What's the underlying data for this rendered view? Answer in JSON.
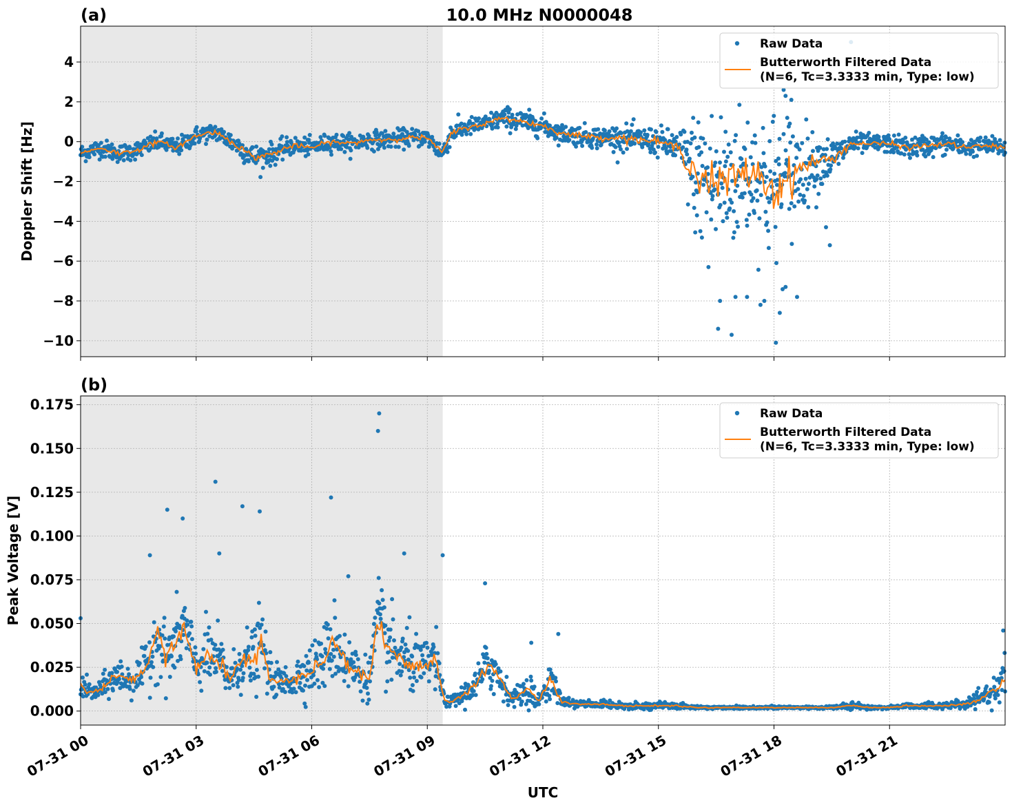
{
  "figure": {
    "title": "10.0 MHz N0000048",
    "xlabel": "UTC",
    "x_tick_labels": [
      "07-31 00",
      "07-31 03",
      "07-31 06",
      "07-31 09",
      "07-31 12",
      "07-31 15",
      "07-31 18",
      "07-31 21"
    ],
    "colors": {
      "raw": "#1f77b4",
      "filtered": "#ff7f0e",
      "night_shade": "#e8e8e8",
      "grid": "#b0b0b0"
    }
  },
  "chart_data": [
    {
      "type": "scatter",
      "panel_label": "(a)",
      "ylabel": "Doppler Shift [Hz]",
      "xlim_hours": [
        0,
        24
      ],
      "ylim": [
        -10.8,
        5.8
      ],
      "y_ticks": [
        4,
        2,
        0,
        -2,
        -4,
        -6,
        -8,
        -10
      ],
      "y_tick_labels": [
        "4",
        "2",
        "0",
        "−2",
        "−4",
        "−6",
        "−8",
        "−10"
      ],
      "grid": true,
      "legend_position": "top-right",
      "shaded_x_range_hours": [
        0,
        9.4
      ],
      "series": [
        {
          "name": "Raw Data",
          "style": "markers",
          "x": [
            0.0,
            0.5,
            1.0,
            1.5,
            2.0,
            2.5,
            3.0,
            3.5,
            4.0,
            4.5,
            5.0,
            5.5,
            6.0,
            6.5,
            7.0,
            7.5,
            8.0,
            8.5,
            9.0,
            9.4,
            9.6,
            10.0,
            10.5,
            11.0,
            11.5,
            12.0,
            12.5,
            13.0,
            13.5,
            14.0,
            14.5,
            15.0,
            15.5,
            16.0,
            16.5,
            17.0,
            17.5,
            18.0,
            18.5,
            19.0,
            19.5,
            20.0,
            20.5,
            21.0,
            21.5,
            22.0,
            22.5,
            23.0,
            23.5,
            24.0
          ],
          "y": [
            -0.6,
            -0.3,
            -0.6,
            -0.4,
            0.0,
            -0.3,
            0.3,
            0.5,
            -0.1,
            -0.8,
            -0.6,
            -0.2,
            -0.3,
            0.0,
            -0.1,
            0.1,
            0.1,
            0.2,
            0.2,
            -0.6,
            0.4,
            0.7,
            0.9,
            1.2,
            1.0,
            0.8,
            0.4,
            0.3,
            0.2,
            0.2,
            0.1,
            0.0,
            -0.3,
            -1.6,
            -2.2,
            -1.8,
            -1.5,
            -2.5,
            -1.6,
            -1.0,
            -0.9,
            -0.1,
            -0.1,
            -0.1,
            -0.3,
            -0.2,
            -0.1,
            -0.3,
            -0.2,
            -0.3
          ],
          "spread": [
            0.5,
            0.5,
            0.5,
            0.5,
            0.5,
            0.5,
            0.5,
            0.5,
            0.6,
            0.7,
            0.6,
            0.5,
            0.5,
            0.5,
            0.5,
            0.5,
            0.5,
            0.5,
            0.5,
            0.6,
            0.6,
            0.5,
            0.5,
            0.6,
            0.6,
            0.6,
            0.5,
            0.6,
            0.6,
            0.7,
            0.7,
            0.8,
            0.9,
            3.5,
            4.5,
            3.8,
            3.5,
            4.5,
            3.5,
            1.5,
            1.2,
            0.6,
            0.5,
            0.5,
            0.6,
            0.6,
            0.6,
            0.5,
            0.5,
            0.5
          ]
        },
        {
          "name": "Butterworth Filtered Data\n(N=6, Tc=3.3333 min, Type: low)",
          "style": "line",
          "x": [
            0.0,
            0.5,
            1.0,
            1.5,
            2.0,
            2.5,
            3.0,
            3.5,
            4.0,
            4.5,
            5.0,
            5.5,
            6.0,
            6.5,
            7.0,
            7.5,
            8.0,
            8.5,
            9.0,
            9.4,
            9.6,
            10.0,
            10.5,
            11.0,
            11.5,
            12.0,
            12.5,
            13.0,
            13.5,
            14.0,
            14.5,
            15.0,
            15.5,
            16.0,
            16.5,
            17.0,
            17.5,
            18.0,
            18.5,
            19.0,
            19.5,
            20.0,
            20.5,
            21.0,
            21.5,
            22.0,
            22.5,
            23.0,
            23.5,
            24.0
          ],
          "y": [
            -0.6,
            -0.3,
            -0.6,
            -0.4,
            0.0,
            -0.3,
            0.3,
            0.5,
            -0.1,
            -0.8,
            -0.6,
            -0.2,
            -0.3,
            0.0,
            -0.1,
            0.1,
            0.1,
            0.2,
            0.2,
            -0.6,
            0.4,
            0.7,
            0.9,
            1.2,
            1.0,
            0.8,
            0.4,
            0.3,
            0.2,
            0.2,
            0.1,
            0.0,
            -0.3,
            -1.6,
            -2.2,
            -1.8,
            -1.5,
            -2.5,
            -1.6,
            -1.0,
            -0.9,
            -0.1,
            -0.1,
            -0.1,
            -0.3,
            -0.2,
            -0.1,
            -0.3,
            -0.2,
            -0.3
          ]
        }
      ],
      "outliers": {
        "x": [
          16.55,
          16.6,
          16.9,
          17.0,
          17.3,
          17.65,
          17.75,
          18.05,
          18.15,
          18.3,
          18.6,
          16.0,
          16.3,
          18.25,
          18.3,
          18.45,
          19.45,
          19.35,
          19.1,
          20.0
        ],
        "y": [
          -9.4,
          -8.0,
          -9.7,
          -7.8,
          -7.8,
          -8.2,
          -8.0,
          -10.1,
          -8.6,
          -7.3,
          -7.8,
          -3.7,
          -6.3,
          2.6,
          2.3,
          2.1,
          -5.2,
          -4.3,
          -3.3,
          5.0
        ]
      },
      "legend": [
        "Raw Data",
        "Butterworth Filtered Data\n(N=6, Tc=3.3333 min, Type: low)"
      ]
    },
    {
      "type": "scatter",
      "panel_label": "(b)",
      "ylabel": "Peak Voltage [V]",
      "xlim_hours": [
        0,
        24
      ],
      "ylim": [
        -0.008,
        0.18
      ],
      "y_ticks": [
        0.175,
        0.15,
        0.125,
        0.1,
        0.075,
        0.05,
        0.025,
        0.0
      ],
      "y_tick_labels": [
        "0.175",
        "0.150",
        "0.125",
        "0.100",
        "0.075",
        "0.050",
        "0.025",
        "0.000"
      ],
      "grid": true,
      "legend_position": "top-right",
      "shaded_x_range_hours": [
        0,
        9.4
      ],
      "series": [
        {
          "name": "Raw Data",
          "style": "markers",
          "x": [
            0.0,
            0.3,
            0.5,
            0.8,
            1.0,
            1.3,
            1.6,
            1.8,
            2.0,
            2.2,
            2.4,
            2.7,
            3.0,
            3.3,
            3.6,
            3.9,
            4.2,
            4.5,
            4.7,
            4.9,
            5.2,
            5.5,
            5.8,
            6.0,
            6.3,
            6.6,
            6.9,
            7.2,
            7.5,
            7.7,
            8.0,
            8.3,
            8.6,
            8.9,
            9.2,
            9.45,
            9.6,
            10.0,
            10.3,
            10.6,
            10.9,
            11.2,
            11.6,
            11.9,
            12.2,
            12.5,
            13.0,
            13.5,
            14.0,
            14.5,
            15.0,
            15.5,
            16.0,
            16.5,
            17.0,
            17.5,
            18.0,
            18.5,
            19.0,
            19.5,
            20.0,
            20.5,
            21.0,
            21.5,
            22.0,
            22.5,
            23.0,
            23.3,
            23.6,
            24.0
          ],
          "y": [
            0.015,
            0.01,
            0.012,
            0.018,
            0.02,
            0.017,
            0.022,
            0.03,
            0.045,
            0.03,
            0.036,
            0.048,
            0.025,
            0.032,
            0.028,
            0.018,
            0.03,
            0.028,
            0.04,
            0.02,
            0.016,
            0.018,
            0.022,
            0.025,
            0.03,
            0.04,
            0.028,
            0.022,
            0.018,
            0.05,
            0.035,
            0.03,
            0.028,
            0.025,
            0.03,
            0.006,
            0.005,
            0.01,
            0.016,
            0.028,
            0.018,
            0.007,
            0.012,
            0.006,
            0.018,
            0.005,
            0.004,
            0.004,
            0.003,
            0.003,
            0.003,
            0.003,
            0.002,
            0.002,
            0.002,
            0.002,
            0.002,
            0.002,
            0.002,
            0.002,
            0.003,
            0.002,
            0.002,
            0.003,
            0.003,
            0.003,
            0.004,
            0.006,
            0.01,
            0.018
          ],
          "spread": [
            0.008,
            0.006,
            0.006,
            0.01,
            0.012,
            0.01,
            0.012,
            0.02,
            0.025,
            0.02,
            0.02,
            0.025,
            0.015,
            0.02,
            0.02,
            0.012,
            0.02,
            0.02,
            0.025,
            0.012,
            0.01,
            0.012,
            0.015,
            0.015,
            0.02,
            0.025,
            0.02,
            0.015,
            0.012,
            0.03,
            0.025,
            0.02,
            0.02,
            0.015,
            0.02,
            0.003,
            0.003,
            0.008,
            0.01,
            0.02,
            0.012,
            0.004,
            0.01,
            0.004,
            0.012,
            0.003,
            0.002,
            0.002,
            0.002,
            0.002,
            0.002,
            0.002,
            0.001,
            0.001,
            0.001,
            0.001,
            0.001,
            0.001,
            0.001,
            0.001,
            0.002,
            0.001,
            0.001,
            0.002,
            0.002,
            0.002,
            0.003,
            0.004,
            0.008,
            0.012
          ]
        },
        {
          "name": "Butterworth Filtered Data\n(N=6, Tc=3.3333 min, Type: low)",
          "style": "line",
          "x": [
            0.0,
            0.3,
            0.5,
            0.8,
            1.0,
            1.3,
            1.6,
            1.8,
            2.0,
            2.2,
            2.4,
            2.7,
            3.0,
            3.3,
            3.6,
            3.9,
            4.2,
            4.5,
            4.7,
            4.9,
            5.2,
            5.5,
            5.8,
            6.0,
            6.3,
            6.6,
            6.9,
            7.2,
            7.5,
            7.7,
            8.0,
            8.3,
            8.6,
            8.9,
            9.2,
            9.45,
            9.6,
            10.0,
            10.3,
            10.6,
            10.9,
            11.2,
            11.6,
            11.9,
            12.2,
            12.5,
            13.0,
            13.5,
            14.0,
            14.5,
            15.0,
            15.5,
            16.0,
            16.5,
            17.0,
            17.5,
            18.0,
            18.5,
            19.0,
            19.5,
            20.0,
            20.5,
            21.0,
            21.5,
            22.0,
            22.5,
            23.0,
            23.3,
            23.6,
            24.0
          ],
          "y": [
            0.015,
            0.01,
            0.012,
            0.018,
            0.02,
            0.017,
            0.022,
            0.03,
            0.045,
            0.03,
            0.036,
            0.048,
            0.025,
            0.032,
            0.028,
            0.018,
            0.03,
            0.028,
            0.04,
            0.02,
            0.016,
            0.018,
            0.022,
            0.025,
            0.03,
            0.04,
            0.028,
            0.022,
            0.018,
            0.05,
            0.035,
            0.03,
            0.028,
            0.025,
            0.03,
            0.006,
            0.005,
            0.01,
            0.016,
            0.028,
            0.018,
            0.007,
            0.012,
            0.006,
            0.018,
            0.005,
            0.004,
            0.004,
            0.003,
            0.003,
            0.003,
            0.003,
            0.002,
            0.002,
            0.002,
            0.002,
            0.002,
            0.002,
            0.002,
            0.002,
            0.003,
            0.002,
            0.002,
            0.003,
            0.003,
            0.003,
            0.004,
            0.006,
            0.01,
            0.018
          ]
        }
      ],
      "outliers": {
        "x": [
          7.75,
          7.72,
          3.5,
          6.5,
          4.2,
          2.25,
          2.65,
          4.65,
          10.5,
          11.7,
          12.4,
          8.4,
          1.8,
          3.6,
          0.0,
          9.4,
          6.95,
          23.95
        ],
        "y": [
          0.17,
          0.16,
          0.131,
          0.122,
          0.117,
          0.115,
          0.11,
          0.114,
          0.073,
          0.039,
          0.044,
          0.09,
          0.089,
          0.09,
          0.053,
          0.089,
          0.077,
          0.046
        ]
      },
      "legend": [
        "Raw Data",
        "Butterworth Filtered Data\n(N=6, Tc=3.3333 min, Type: low)"
      ]
    }
  ]
}
